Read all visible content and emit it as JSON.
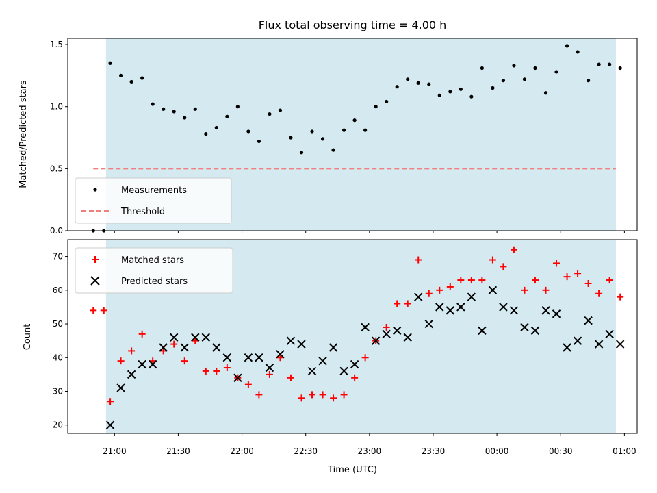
{
  "colors": {
    "observing_band": "#d4eaf0",
    "threshold": "#f08080",
    "matched": "#ff0000",
    "predicted": "#000000",
    "measurements": "#000000"
  },
  "chart_data": [
    {
      "type": "scatter",
      "title": "Flux total observing time = 4.00 h",
      "xlabel": "",
      "ylabel": "Matched/Predicted stars",
      "ylim": [
        0,
        1.55
      ],
      "yticks": [
        0,
        0.5,
        1.0,
        1.5
      ],
      "ytick_labels": [
        "0.0",
        "0.5",
        "1.0",
        "1.5"
      ],
      "xlim": [
        "20:38",
        "01:06"
      ],
      "shaded_interval": [
        "20:56",
        "00:56"
      ],
      "legend": "lower-left",
      "series": [
        {
          "name": "Measurements",
          "marker": "dot",
          "x": [
            "20:50",
            "20:55",
            "20:58",
            "21:03",
            "21:08",
            "21:13",
            "21:18",
            "21:23",
            "21:28",
            "21:33",
            "21:38",
            "21:43",
            "21:48",
            "21:53",
            "21:58",
            "22:03",
            "22:08",
            "22:13",
            "22:18",
            "22:23",
            "22:28",
            "22:33",
            "22:38",
            "22:43",
            "22:48",
            "22:53",
            "22:58",
            "23:03",
            "23:08",
            "23:13",
            "23:18",
            "23:23",
            "23:28",
            "23:33",
            "23:38",
            "23:43",
            "23:48",
            "23:53",
            "23:58",
            "00:03",
            "00:08",
            "00:13",
            "00:18",
            "00:23",
            "00:28",
            "00:33",
            "00:38",
            "00:43",
            "00:48",
            "00:53",
            "00:58"
          ],
          "y": [
            0.0,
            0.0,
            1.35,
            1.25,
            1.2,
            1.23,
            1.02,
            0.98,
            0.96,
            0.91,
            0.98,
            0.78,
            0.83,
            0.92,
            1.0,
            0.8,
            0.72,
            0.94,
            0.97,
            0.75,
            0.63,
            0.8,
            0.74,
            0.65,
            0.81,
            0.89,
            0.81,
            1.0,
            1.04,
            1.16,
            1.22,
            1.19,
            1.18,
            1.09,
            1.12,
            1.14,
            1.08,
            1.31,
            1.15,
            1.21,
            1.33,
            1.22,
            1.31,
            1.11,
            1.28,
            1.49,
            1.44,
            1.21,
            1.34,
            1.34,
            1.31
          ]
        },
        {
          "name": "Threshold",
          "type": "line",
          "style": "dashed",
          "x": [
            "20:50",
            "00:56"
          ],
          "y": [
            0.5,
            0.5
          ]
        }
      ]
    },
    {
      "type": "scatter",
      "title": "",
      "xlabel": "Time (UTC)",
      "ylabel": "Count",
      "ylim": [
        17.5,
        75
      ],
      "yticks": [
        20,
        30,
        40,
        50,
        60,
        70
      ],
      "ytick_labels": [
        "20",
        "30",
        "40",
        "50",
        "60",
        "70"
      ],
      "xlim": [
        "20:38",
        "01:06"
      ],
      "xticks": [
        "21:00",
        "21:30",
        "22:00",
        "22:30",
        "23:00",
        "23:30",
        "00:00",
        "00:30",
        "01:00"
      ],
      "xtick_labels": [
        "21:00",
        "21:30",
        "22:00",
        "22:30",
        "23:00",
        "23:30",
        "00:00",
        "00:30",
        "01:00"
      ],
      "shaded_interval": [
        "20:56",
        "00:56"
      ],
      "legend": "top-left",
      "series": [
        {
          "name": "Matched stars",
          "marker": "plus",
          "x": [
            "20:50",
            "20:55",
            "20:58",
            "21:03",
            "21:08",
            "21:13",
            "21:18",
            "21:23",
            "21:28",
            "21:33",
            "21:38",
            "21:43",
            "21:48",
            "21:53",
            "21:58",
            "22:03",
            "22:08",
            "22:13",
            "22:18",
            "22:23",
            "22:28",
            "22:33",
            "22:38",
            "22:43",
            "22:48",
            "22:53",
            "22:58",
            "23:03",
            "23:08",
            "23:13",
            "23:18",
            "23:23",
            "23:28",
            "23:33",
            "23:38",
            "23:43",
            "23:48",
            "23:53",
            "23:58",
            "00:03",
            "00:08",
            "00:13",
            "00:18",
            "00:23",
            "00:28",
            "00:33",
            "00:38",
            "00:43",
            "00:48",
            "00:53",
            "00:58"
          ],
          "y": [
            54,
            54,
            27,
            39,
            42,
            47,
            39,
            42,
            44,
            39,
            45,
            36,
            36,
            37,
            34,
            32,
            29,
            35,
            40,
            34,
            28,
            29,
            29,
            28,
            29,
            34,
            40,
            45,
            49,
            56,
            56,
            69,
            59,
            60,
            61,
            63,
            63,
            63,
            69,
            67,
            72,
            60,
            63,
            60,
            68,
            64,
            65,
            62,
            59,
            63,
            58
          ]
        },
        {
          "name": "Predicted stars",
          "marker": "x",
          "x": [
            "20:58",
            "21:03",
            "21:08",
            "21:13",
            "21:18",
            "21:23",
            "21:28",
            "21:33",
            "21:38",
            "21:43",
            "21:48",
            "21:53",
            "21:58",
            "22:03",
            "22:08",
            "22:13",
            "22:18",
            "22:23",
            "22:28",
            "22:33",
            "22:38",
            "22:43",
            "22:48",
            "22:53",
            "22:58",
            "23:03",
            "23:08",
            "23:13",
            "23:18",
            "23:23",
            "23:28",
            "23:33",
            "23:38",
            "23:43",
            "23:48",
            "23:53",
            "23:58",
            "00:03",
            "00:08",
            "00:13",
            "00:18",
            "00:23",
            "00:28",
            "00:33",
            "00:38",
            "00:43",
            "00:48",
            "00:53",
            "00:58"
          ],
          "y": [
            20,
            31,
            35,
            38,
            38,
            43,
            46,
            43,
            46,
            46,
            43,
            40,
            34,
            40,
            40,
            37,
            41,
            45,
            44,
            36,
            39,
            43,
            36,
            38,
            49,
            45,
            47,
            48,
            46,
            58,
            50,
            55,
            54,
            55,
            58,
            48,
            60,
            55,
            54,
            49,
            48,
            54,
            53,
            43,
            45,
            51,
            44,
            47,
            44
          ]
        }
      ]
    }
  ]
}
